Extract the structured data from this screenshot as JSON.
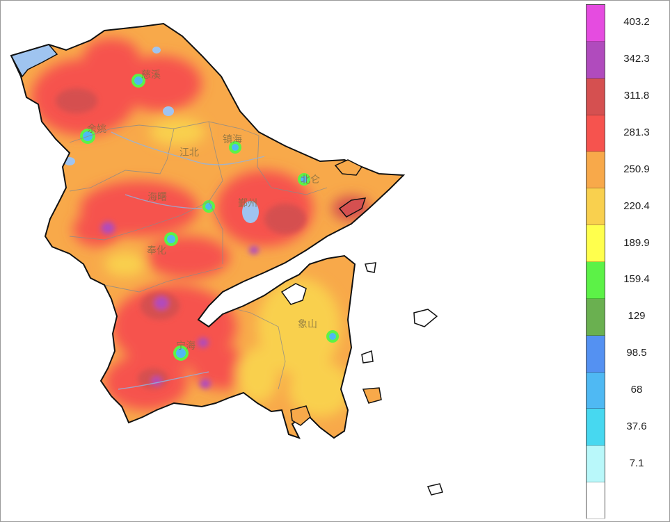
{
  "map": {
    "place_labels": [
      {
        "name": "慈溪"
      },
      {
        "name": "余姚"
      },
      {
        "name": "江北"
      },
      {
        "name": "镇海"
      },
      {
        "name": "北仑"
      },
      {
        "name": "海曙"
      },
      {
        "name": "鄞州"
      },
      {
        "name": "奉化"
      },
      {
        "name": "象山"
      },
      {
        "name": "宁海"
      }
    ]
  },
  "legend": {
    "ticks": [
      "403.2",
      "342.3",
      "311.8",
      "281.3",
      "250.9",
      "220.4",
      "189.9",
      "159.4",
      "129",
      "98.5",
      "68",
      "37.6",
      "7.1"
    ],
    "colors": [
      "#e54ce0",
      "#b04bbd",
      "#d55050",
      "#f6534e",
      "#f8a94a",
      "#f9d04e",
      "#ffff4d",
      "#5cf247",
      "#6ab050",
      "#5491f2",
      "#4fb9f3",
      "#47d8f0",
      "#b9f8fa",
      "#ffffff"
    ]
  }
}
